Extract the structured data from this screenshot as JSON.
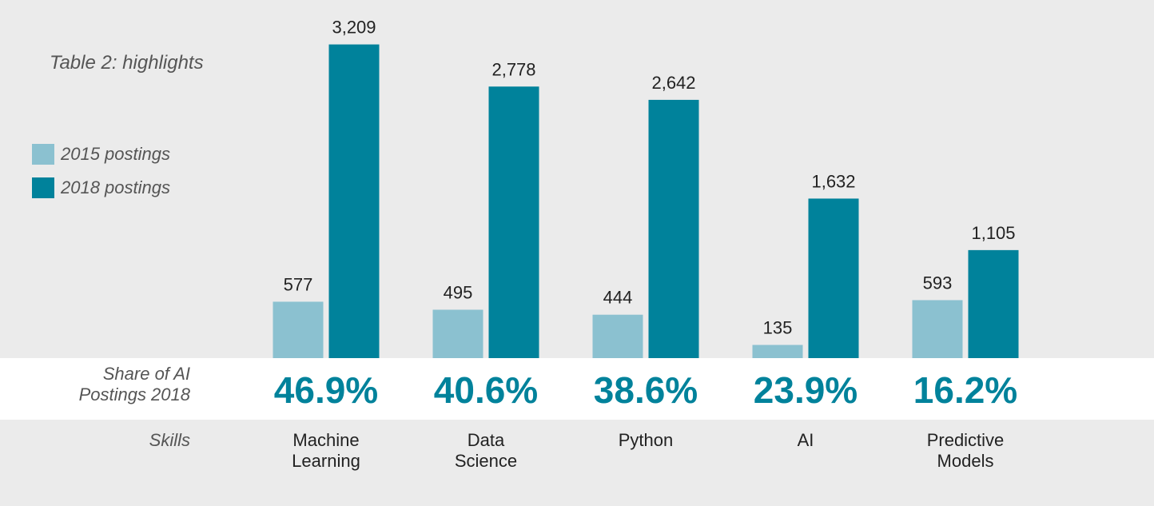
{
  "chart_data": {
    "type": "bar",
    "title": "Table 2: highlights",
    "categories": [
      "Machine Learning",
      "Data Science",
      "Python",
      "AI",
      "Predictive Models"
    ],
    "series": [
      {
        "name": "2015 postings",
        "color": "#8bc1d0",
        "values": [
          577,
          495,
          444,
          135,
          593
        ],
        "value_labels": [
          "577",
          "495",
          "444",
          "135",
          "593"
        ]
      },
      {
        "name": "2018 postings",
        "color": "#00829b",
        "values": [
          3209,
          2778,
          2642,
          1632,
          1105
        ],
        "value_labels": [
          "3,209",
          "2,778",
          "2,642",
          "1,632",
          "1,105"
        ]
      }
    ],
    "ylim": [
      0,
      3500
    ],
    "legend": "left",
    "share": {
      "label": "Share of AI Postings 2018",
      "values": [
        46.9,
        40.6,
        38.6,
        23.9,
        16.2
      ],
      "value_labels": [
        "46.9%",
        "40.6%",
        "38.6%",
        "23.9%",
        "16.2%"
      ],
      "color": "#00829b"
    },
    "category_label": "Skills"
  }
}
